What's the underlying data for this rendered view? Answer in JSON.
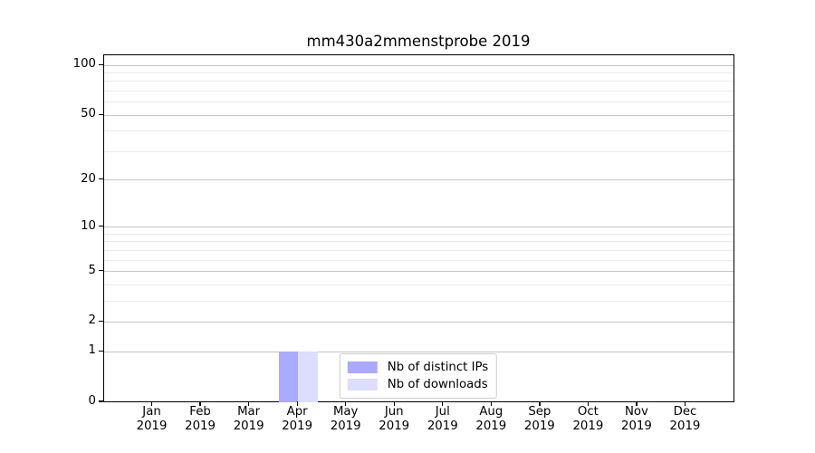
{
  "chart_data": {
    "type": "bar",
    "title": "mm430a2mmenstprobe 2019",
    "categories": [
      "Jan",
      "Feb",
      "Mar",
      "Apr",
      "May",
      "Jun",
      "Jul",
      "Aug",
      "Sep",
      "Oct",
      "Nov",
      "Dec"
    ],
    "category_year": "2019",
    "series": [
      {
        "name": "Nb of distinct IPs",
        "color": "#aaaaff",
        "values": [
          0,
          0,
          0,
          1,
          0,
          0,
          0,
          0,
          0,
          0,
          0,
          0
        ]
      },
      {
        "name": "Nb of downloads",
        "color": "#ddddff",
        "values": [
          0,
          0,
          0,
          1,
          0,
          0,
          0,
          0,
          0,
          0,
          0,
          0
        ]
      }
    ],
    "xlabel": "",
    "ylabel": "",
    "yscale": "log1p",
    "yticks": [
      0,
      1,
      2,
      5,
      10,
      20,
      50,
      100
    ],
    "minor_yticks": [
      3,
      4,
      6,
      7,
      8,
      9,
      30,
      40,
      60,
      70,
      80,
      90
    ],
    "ylim": [
      0,
      115
    ],
    "grid": "horizontal-major-and-minor",
    "legend": {
      "position": "lower center"
    },
    "colors": {
      "background": "#ffffff",
      "axis": "#000000",
      "grid_major": "#c6c6c6",
      "grid_minor": "#ebebeb",
      "legend_border": "#cccccc",
      "bar_distinct_ips": "#aaaaff",
      "bar_downloads": "#ddddff"
    }
  }
}
